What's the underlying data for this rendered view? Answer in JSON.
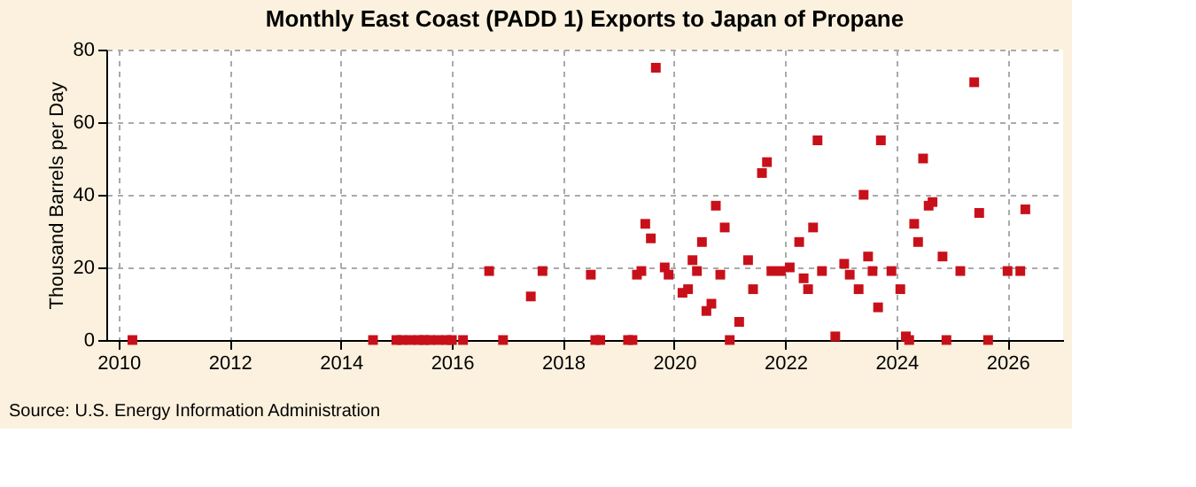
{
  "chart_data": {
    "type": "scatter",
    "title": "Monthly East Coast (PADD 1) Exports to Japan of Propane",
    "ylabel": "Thousand Barrels per Day",
    "x": [
      2010.25,
      2014.58,
      2015.0,
      2015.1,
      2015.25,
      2015.4,
      2015.5,
      2015.6,
      2015.75,
      2015.9,
      2016.0,
      2016.2,
      2016.67,
      2016.92,
      2017.42,
      2017.63,
      2018.5,
      2018.58,
      2018.67,
      2019.17,
      2019.25,
      2019.33,
      2019.41,
      2019.48,
      2019.58,
      2019.67,
      2019.83,
      2019.9,
      2020.15,
      2020.25,
      2020.33,
      2020.41,
      2020.5,
      2020.58,
      2020.67,
      2020.75,
      2020.83,
      2020.91,
      2021.0,
      2021.17,
      2021.33,
      2021.42,
      2021.58,
      2021.67,
      2021.75,
      2021.92,
      2022.08,
      2022.25,
      2022.33,
      2022.41,
      2022.5,
      2022.58,
      2022.66,
      2022.9,
      2023.06,
      2023.16,
      2023.32,
      2023.41,
      2023.49,
      2023.57,
      2023.67,
      2023.72,
      2023.91,
      2024.07,
      2024.17,
      2024.23,
      2024.32,
      2024.39,
      2024.48,
      2024.58,
      2024.65,
      2024.83,
      2024.9,
      2025.15,
      2025.4,
      2025.49,
      2025.65,
      2026.0,
      2026.23,
      2026.32
    ],
    "series": [
      {
        "color": "#c8101a",
        "values": [
          0,
          0,
          0,
          0,
          0,
          0,
          0,
          0,
          0,
          0,
          0,
          0,
          19,
          0,
          12,
          19,
          18,
          0,
          0,
          0,
          0,
          18,
          19,
          32,
          28,
          75,
          20,
          18,
          13,
          14,
          22,
          19,
          27,
          8,
          10,
          37,
          18,
          31,
          0,
          5,
          22,
          14,
          46,
          49,
          19,
          19,
          20,
          27,
          17,
          14,
          31,
          55,
          19,
          1,
          21,
          18,
          14,
          40,
          23,
          19,
          9,
          55,
          19,
          14,
          1,
          0,
          32,
          27,
          50,
          37,
          38,
          23,
          0,
          19,
          71,
          35,
          0,
          19,
          19,
          36
        ]
      }
    ],
    "xlim": [
      2009.78,
      2027.0
    ],
    "xticks": [
      2010,
      2012,
      2014,
      2016,
      2018,
      2020,
      2022,
      2024,
      2026
    ],
    "ylim": [
      0,
      80
    ],
    "yticks": [
      0,
      20,
      40,
      60,
      80
    ],
    "grid": true,
    "marker": "square",
    "legend": false,
    "annotations": [
      "Source: U.S. Energy Information Administration"
    ]
  }
}
